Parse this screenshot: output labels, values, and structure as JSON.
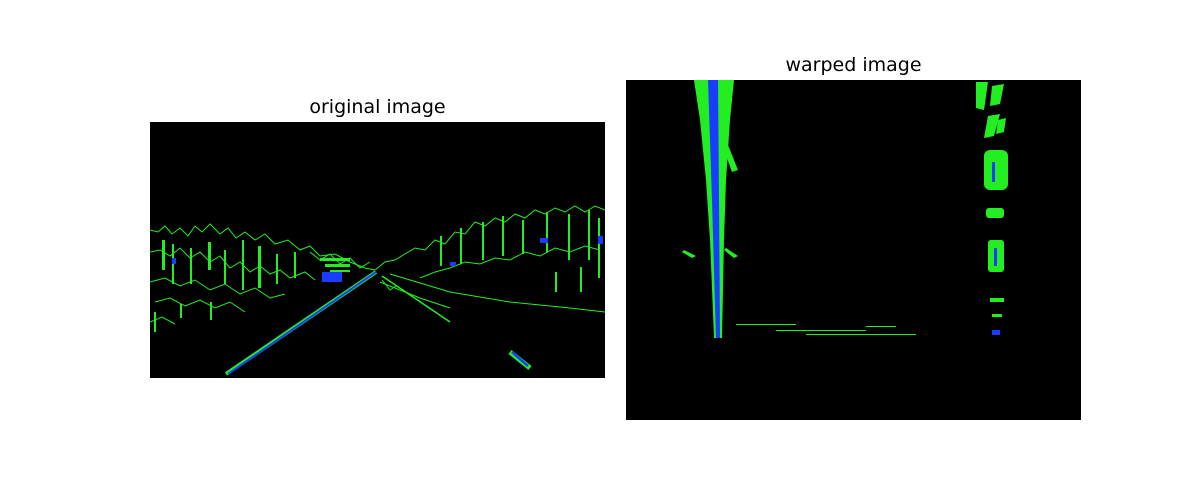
{
  "figure": {
    "left_title": "original image",
    "right_title": "warped image"
  },
  "colors": {
    "background": "#ffffff",
    "image_background": "#000000",
    "edge_green": "#22ee22",
    "edge_blue": "#1a3cff"
  }
}
